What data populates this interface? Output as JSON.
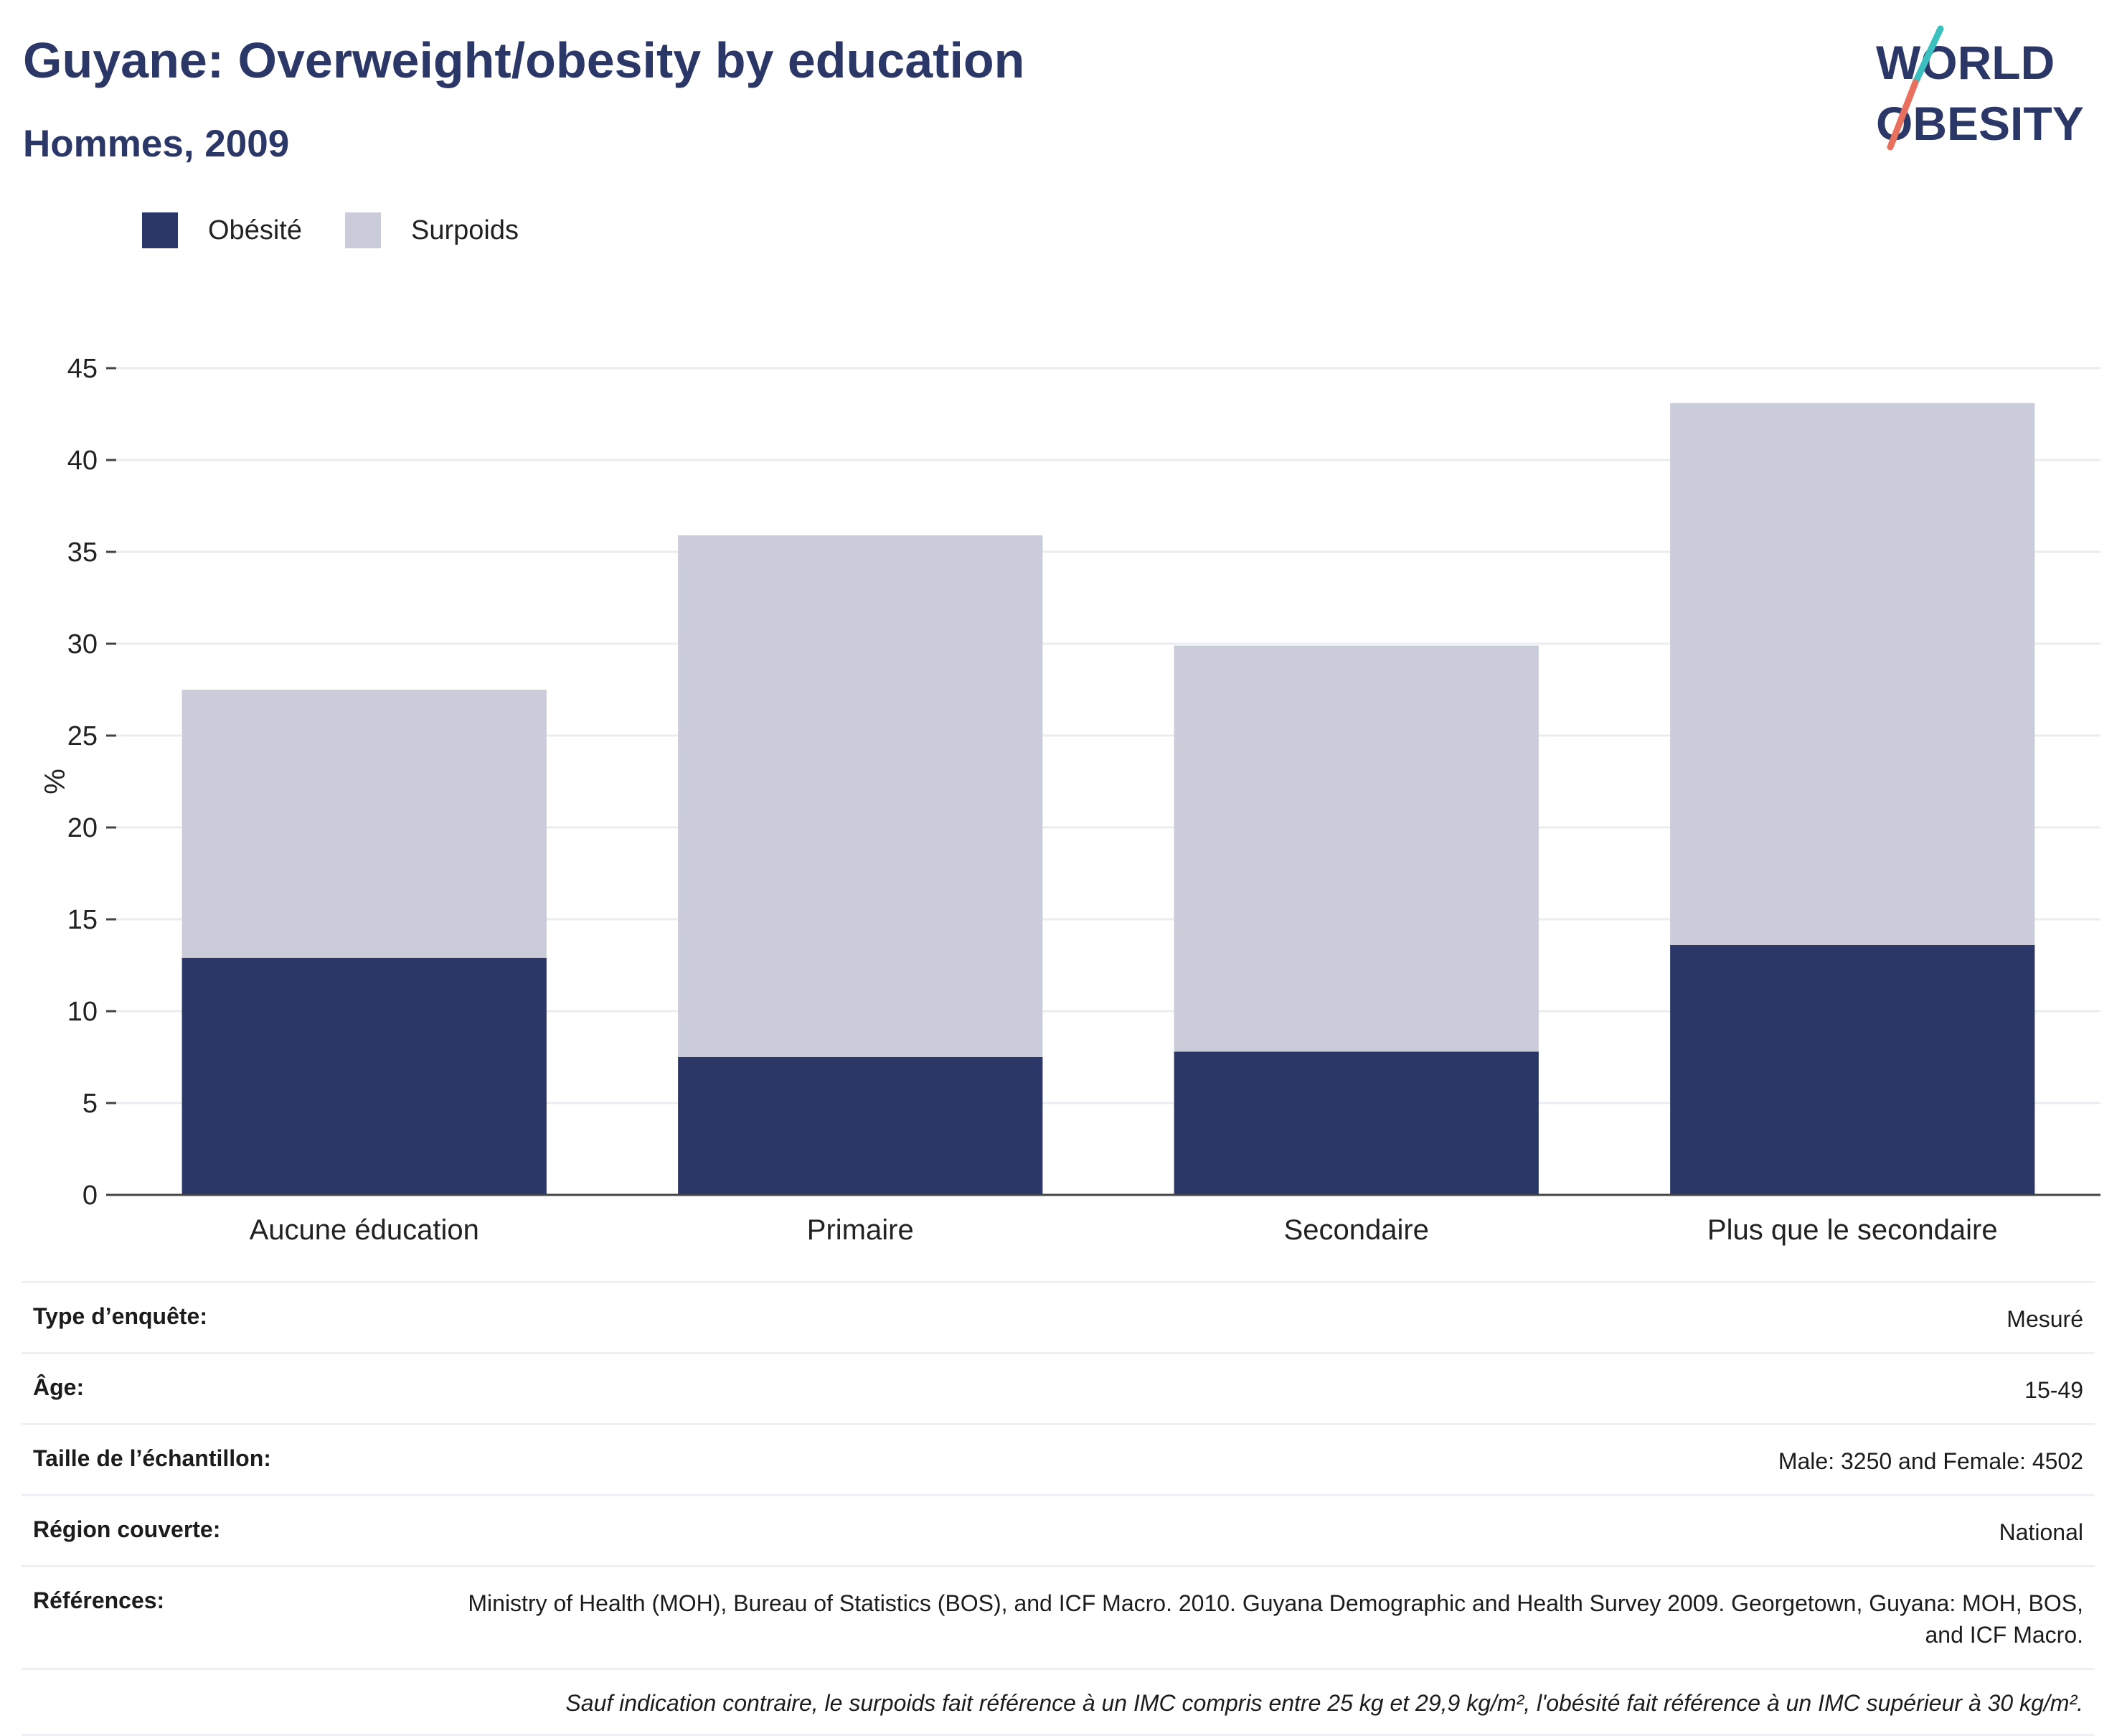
{
  "header": {
    "title": "Guyane: Overweight/obesity by education",
    "subtitle": "Hommes, 2009"
  },
  "logo": {
    "line1": "WORLD",
    "line2": "OBESITY"
  },
  "legend": [
    {
      "label": "Obésité",
      "color": "#2b3766"
    },
    {
      "label": "Surpoids",
      "color": "#cacdd9"
    }
  ],
  "chart_data": {
    "type": "bar",
    "stacked": true,
    "categories": [
      "Aucune éducation",
      "Primaire",
      "Secondaire",
      "Plus que le secondaire"
    ],
    "series": [
      {
        "name": "Obésité",
        "color": "#2b3766",
        "values": [
          12.9,
          7.5,
          7.8,
          13.6
        ]
      },
      {
        "name": "Surpoids",
        "color": "#cacdd9",
        "values": [
          14.6,
          28.4,
          22.1,
          29.5
        ]
      }
    ],
    "ylabel": "%",
    "xlabel": "",
    "ylim": [
      0,
      45
    ],
    "yticks": [
      0,
      5,
      10,
      15,
      20,
      25,
      30,
      35,
      40,
      45
    ],
    "grid": true,
    "legend_position": "top-left"
  },
  "info": [
    {
      "key": "Type d’enquête:",
      "value": "Mesuré"
    },
    {
      "key": "Âge:",
      "value": "15-49"
    },
    {
      "key": "Taille de l’échantillon:",
      "value": "Male: 3250 and Female: 4502"
    },
    {
      "key": "Région couverte:",
      "value": "National"
    },
    {
      "key": "Références:",
      "value": "Ministry of Health (MOH), Bureau of Statistics (BOS), and ICF Macro. 2010. Guyana Demographic and Health Survey 2009. Georgetown, Guyana: MOH, BOS, and ICF Macro."
    }
  ],
  "footnote": "Sauf indication contraire, le surpoids fait référence à un IMC compris entre 25 kg et 29,9 kg/m², l'obésité fait référence à un IMC supérieur à 30 kg/m²."
}
